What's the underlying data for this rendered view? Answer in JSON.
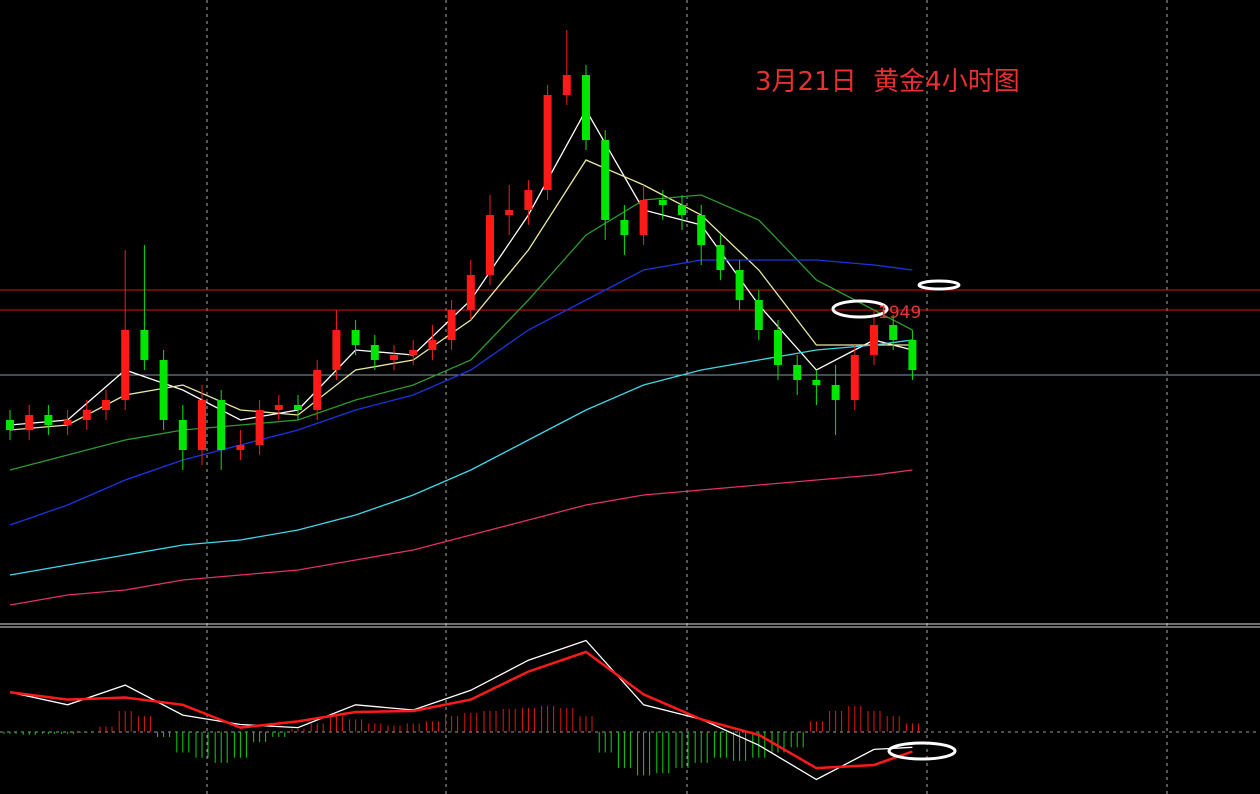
{
  "chart_data": [
    {
      "type": "candlestick",
      "title": "3月21日  黄金4小时图",
      "categories": [
        null,
        null,
        null,
        null,
        null,
        null,
        null,
        null,
        null,
        null,
        null,
        null,
        null,
        null,
        null,
        null,
        null,
        null,
        null,
        null,
        null,
        null,
        null,
        null,
        null,
        null,
        null,
        null,
        null,
        null,
        null,
        null,
        null,
        null,
        null,
        null,
        null,
        null,
        null,
        null,
        null,
        null,
        null,
        null,
        null,
        null,
        null,
        null
      ],
      "open": [
        1927,
        1925,
        1928,
        1926,
        1927,
        1929,
        1931,
        1945,
        1939,
        1927,
        1921,
        1931,
        1921,
        1922,
        1929,
        1930,
        1929,
        1937,
        1945,
        1942,
        1939,
        1940,
        1941,
        1943,
        1949,
        1956,
        1968,
        1969,
        1973,
        1992,
        1996,
        1983,
        1967,
        1964,
        1971,
        1970,
        1968,
        1962,
        1957,
        1951,
        1945,
        1938,
        1935,
        1934,
        1931,
        1940,
        1946,
        1943
      ],
      "high": [
        1929,
        1930,
        1930,
        1929,
        1931,
        1933,
        1961,
        1962,
        1941,
        1930,
        1934,
        1933,
        1925,
        1931,
        1932,
        1932,
        1939,
        1949,
        1947,
        1944,
        1942,
        1943,
        1946,
        1951,
        1959,
        1972,
        1974,
        1975,
        1994,
        2005,
        1998,
        1985,
        1970,
        1974,
        1973,
        1972,
        1970,
        1964,
        1959,
        1953,
        1947,
        1940,
        1937,
        1938,
        1942,
        1949,
        1948,
        1945
      ],
      "low": [
        1923,
        1923,
        1924,
        1924,
        1925,
        1927,
        1929,
        1937,
        1925,
        1917,
        1918,
        1917,
        1919,
        1920,
        1927,
        1927,
        1927,
        1935,
        1940,
        1937,
        1937,
        1938,
        1939,
        1941,
        1947,
        1954,
        1964,
        1966,
        1971,
        1990,
        1981,
        1963,
        1960,
        1962,
        1967,
        1965,
        1958,
        1955,
        1949,
        1943,
        1935,
        1932,
        1930,
        1924,
        1929,
        1938,
        1941,
        1935
      ],
      "close": [
        1925,
        1928,
        1926,
        1927,
        1929,
        1931,
        1945,
        1939,
        1927,
        1921,
        1931,
        1921,
        1922,
        1929,
        1930,
        1929,
        1937,
        1945,
        1942,
        1939,
        1940,
        1941,
        1943,
        1949,
        1956,
        1968,
        1969,
        1973,
        1992,
        1996,
        1983,
        1967,
        1964,
        1971,
        1970,
        1968,
        1962,
        1957,
        1951,
        1945,
        1938,
        1935,
        1934,
        1931,
        1940,
        1946,
        1943,
        1937
      ],
      "up_color": "#ff1a1a",
      "down_color": "#00e600",
      "ylim": [
        1887,
        2011
      ],
      "lines": [
        {
          "value": 1953,
          "color": "#e01010"
        },
        {
          "value": 1949,
          "color": "#e01010"
        },
        {
          "value": 1936,
          "color": "#8a9aa8"
        }
      ],
      "x": [
        0,
        3,
        6,
        9,
        12,
        15,
        18,
        21,
        24,
        27,
        30,
        33,
        36,
        39,
        42,
        45,
        47
      ],
      "series": [
        {
          "color": "#ffffff",
          "values": [
            1926,
            1927,
            1937,
            1933,
            1927,
            1929,
            1941,
            1940,
            1951,
            1968,
            1989,
            1969,
            1966,
            1950,
            1937,
            1943,
            1941
          ]
        },
        {
          "color": "#e8e8a0",
          "values": [
            1925,
            1926,
            1932,
            1934,
            1929,
            1928,
            1937,
            1939,
            1947,
            1961,
            1979,
            1974,
            1968,
            1957,
            1942,
            1942,
            1942
          ]
        },
        {
          "color": "#2e9a2e",
          "values": [
            1917,
            1920,
            1923,
            1925,
            1926,
            1927,
            1931,
            1934,
            1939,
            1951,
            1964,
            1971,
            1972,
            1967,
            1955,
            1949,
            1945
          ]
        },
        {
          "color": "#1a35e0",
          "values": [
            1906,
            1910,
            1915,
            1919,
            1922,
            1925,
            1929,
            1932,
            1937,
            1945,
            1951,
            1957,
            1959,
            1959,
            1959,
            1958,
            1957
          ]
        },
        {
          "color": "#40d8e8",
          "values": [
            1896,
            1898,
            1900,
            1902,
            1903,
            1905,
            1908,
            1912,
            1917,
            1923,
            1929,
            1934,
            1937,
            1939,
            1941,
            1942,
            1943
          ]
        },
        {
          "color": "#e0306a",
          "values": [
            1890,
            1892,
            1893,
            1895,
            1896,
            1897,
            1899,
            1901,
            1904,
            1907,
            1910,
            1912,
            1913,
            1914,
            1915,
            1916,
            1917
          ]
        }
      ]
    },
    {
      "type": "macd",
      "ylim": [
        -6,
        10
      ],
      "x": [
        0,
        3,
        6,
        9,
        12,
        15,
        18,
        21,
        24,
        27,
        30,
        33,
        36,
        39,
        42,
        45,
        47
      ],
      "series": [
        {
          "color": "#ffffff",
          "values": [
            3.8,
            2.6,
            4.5,
            1.6,
            0.7,
            0.4,
            2.6,
            2.1,
            4.0,
            6.9,
            8.8,
            2.6,
            1.2,
            -1.3,
            -4.6,
            -1.7,
            -1.5
          ]
        },
        {
          "color": "#ff1a1a",
          "values": [
            3.8,
            3.1,
            3.3,
            2.6,
            0.4,
            1.0,
            1.9,
            2.0,
            3.1,
            5.8,
            7.7,
            3.6,
            1.2,
            -0.3,
            -3.5,
            -3.2,
            -1.9
          ]
        }
      ],
      "histogram": {
        "up_color": "#e01818",
        "down_color": "#10d010",
        "values": [
          -0.2,
          -0.3,
          -0.2,
          -0.2,
          -0.1,
          0.5,
          2.0,
          1.5,
          -0.5,
          -2.0,
          -2.5,
          -3.0,
          -2.5,
          -1.0,
          -0.5,
          0.3,
          0.8,
          1.5,
          1.2,
          0.8,
          0.6,
          0.8,
          1.0,
          1.5,
          1.8,
          2.0,
          2.2,
          2.3,
          2.5,
          2.3,
          1.5,
          -2.0,
          -3.5,
          -4.2,
          -4.0,
          -3.5,
          -3.0,
          -2.5,
          -2.8,
          -2.5,
          -2.0,
          -1.5,
          1.0,
          2.0,
          2.5,
          2.0,
          1.5,
          0.8
        ]
      }
    }
  ]
}
